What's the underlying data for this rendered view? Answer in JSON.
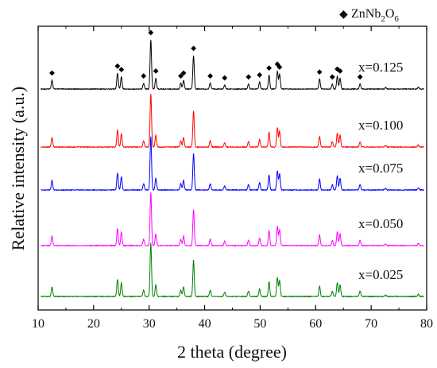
{
  "chart_data": {
    "type": "line",
    "xlabel": "2 theta (degree)",
    "ylabel": "Relative intensity (a.u.)",
    "xlim": [
      10,
      80
    ],
    "x_ticks": [
      10,
      20,
      30,
      40,
      50,
      60,
      70,
      80
    ],
    "grid": false,
    "legend": {
      "symbol": "◆",
      "phase_main": "ZnNb",
      "sub1": "2",
      "mid": "O",
      "sub2": "6",
      "placement": "top-right"
    },
    "peak_markers_for": "x=0.125",
    "peaks": [
      {
        "x": 12.5,
        "h": 0.18
      },
      {
        "x": 24.3,
        "h": 0.32
      },
      {
        "x": 25.0,
        "h": 0.25
      },
      {
        "x": 29.0,
        "h": 0.12
      },
      {
        "x": 30.3,
        "h": 1.0
      },
      {
        "x": 31.2,
        "h": 0.22
      },
      {
        "x": 35.7,
        "h": 0.12
      },
      {
        "x": 36.2,
        "h": 0.18
      },
      {
        "x": 38.0,
        "h": 0.68
      },
      {
        "x": 41.0,
        "h": 0.12
      },
      {
        "x": 43.6,
        "h": 0.08
      },
      {
        "x": 47.9,
        "h": 0.1
      },
      {
        "x": 49.9,
        "h": 0.14
      },
      {
        "x": 51.6,
        "h": 0.28
      },
      {
        "x": 53.1,
        "h": 0.36
      },
      {
        "x": 53.5,
        "h": 0.3
      },
      {
        "x": 60.7,
        "h": 0.2
      },
      {
        "x": 63.0,
        "h": 0.1
      },
      {
        "x": 63.9,
        "h": 0.26
      },
      {
        "x": 64.4,
        "h": 0.22
      },
      {
        "x": 68.0,
        "h": 0.1
      },
      {
        "x": 72.6,
        "h": 0.03
      },
      {
        "x": 78.5,
        "h": 0.04
      }
    ],
    "series": [
      {
        "name": "x=0.125",
        "color": "#000000",
        "scale": 0.72
      },
      {
        "name": "x=0.100",
        "color": "#ff0000",
        "scale": 0.78
      },
      {
        "name": "x=0.075",
        "color": "#0000ff",
        "scale": 0.78
      },
      {
        "name": "x=0.050",
        "color": "#ff00ff",
        "scale": 0.78
      },
      {
        "name": "x=0.025",
        "color": "#008000",
        "scale": 0.78
      }
    ]
  }
}
